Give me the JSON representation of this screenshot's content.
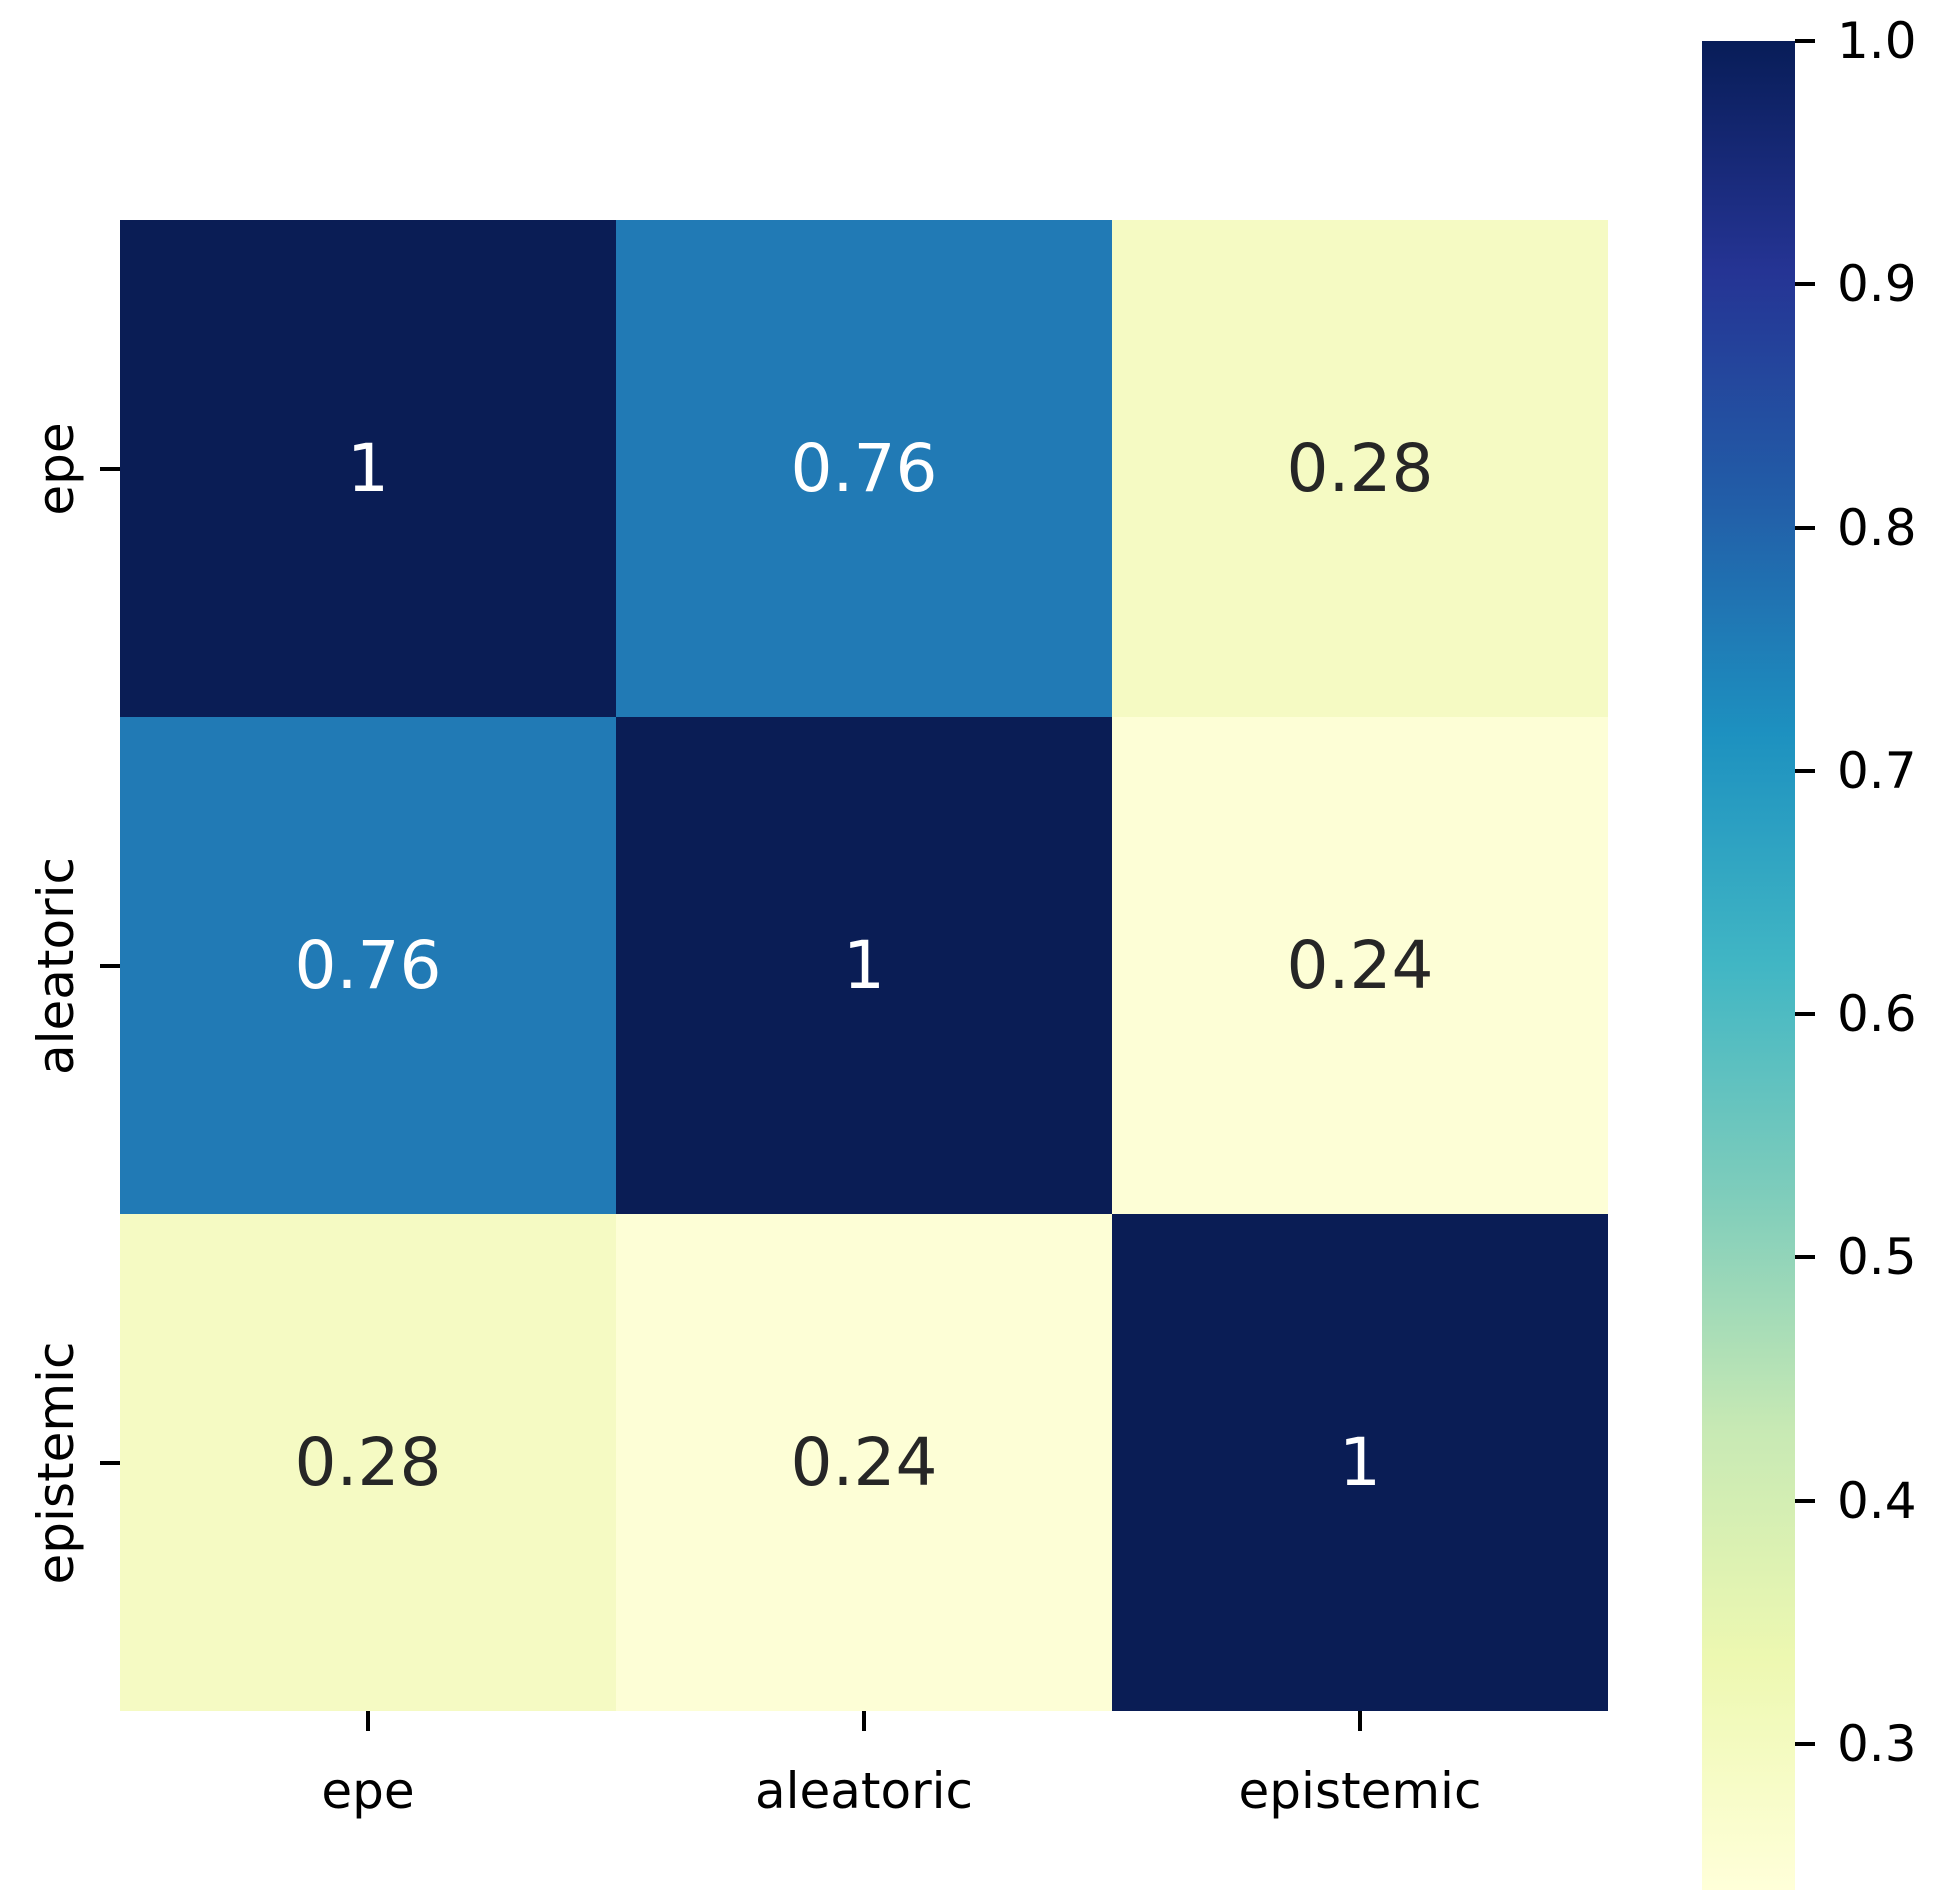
{
  "chart_data": {
    "type": "heatmap",
    "title": "",
    "x_tick_labels": [
      "epe",
      "aleatoric",
      "epistemic"
    ],
    "y_tick_labels": [
      "epe",
      "aleatoric",
      "epistemic"
    ],
    "matrix": [
      [
        1,
        0.76,
        0.28
      ],
      [
        0.76,
        1,
        0.24
      ],
      [
        0.28,
        0.24,
        1
      ]
    ],
    "cell_labels": [
      [
        "1",
        "0.76",
        "0.28"
      ],
      [
        "0.76",
        "1",
        "0.24"
      ],
      [
        "0.28",
        "0.24",
        "1"
      ]
    ],
    "cell_colors": [
      [
        "#0a1d55",
        "#217ab5",
        "#f5fac3"
      ],
      [
        "#217ab5",
        "#0a1d55",
        "#fdfed6"
      ],
      [
        "#f5fac3",
        "#fdfed6",
        "#0a1d55"
      ]
    ],
    "annotation_colors": {
      "on_dark": "#ffffff",
      "on_light": "#262626"
    },
    "colormap": {
      "name": "YlGnBu",
      "stops_low_to_high": [
        "#ffffd9",
        "#edf8b1",
        "#c7e9b4",
        "#7fcdbb",
        "#41b6c4",
        "#1d91c0",
        "#225ea8",
        "#253494",
        "#081d58"
      ]
    },
    "colorbar": {
      "vmin": 0.24,
      "vmax": 1.0,
      "tick_labels": [
        "1.0",
        "0.9",
        "0.8",
        "0.7",
        "0.6",
        "0.5",
        "0.4",
        "0.3"
      ],
      "tick_values": [
        1.0,
        0.9,
        0.8,
        0.7,
        0.6,
        0.5,
        0.4,
        0.3
      ]
    },
    "grid": false,
    "tick_color": "#000000",
    "background": "#ffffff"
  }
}
